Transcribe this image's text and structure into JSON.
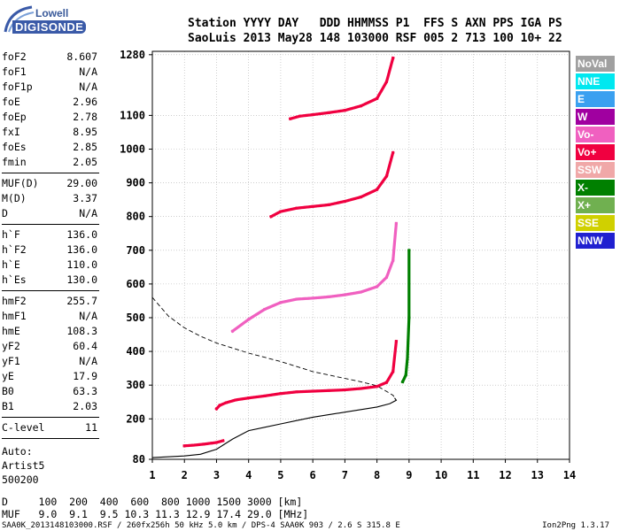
{
  "logo": {
    "line1": "Lowell",
    "line2": "DIGISONDE"
  },
  "header": {
    "line1": "Station YYYY DAY   DDD HHMMSS P1  FFS S AXN PPS IGA PS",
    "line2": "SaoLuis 2013 May28 148 103000 RSF 005 2 713 100 10+ 22"
  },
  "params": {
    "group1": [
      {
        "k": "foF2",
        "v": "8.607"
      },
      {
        "k": "foF1",
        "v": "N/A"
      },
      {
        "k": "foF1p",
        "v": "N/A"
      },
      {
        "k": "foE",
        "v": "2.96"
      },
      {
        "k": "foEp",
        "v": "2.78"
      },
      {
        "k": "fxI",
        "v": "8.95"
      },
      {
        "k": "foEs",
        "v": "2.85"
      },
      {
        "k": "fmin",
        "v": "2.05"
      }
    ],
    "group2": [
      {
        "k": "MUF(D)",
        "v": "29.00"
      },
      {
        "k": "M(D)",
        "v": "3.37"
      },
      {
        "k": "D",
        "v": "N/A"
      }
    ],
    "group3": [
      {
        "k": "h`F",
        "v": "136.0"
      },
      {
        "k": "h`F2",
        "v": "136.0"
      },
      {
        "k": "h`E",
        "v": "110.0"
      },
      {
        "k": "h`Es",
        "v": "130.0"
      }
    ],
    "group4": [
      {
        "k": "hmF2",
        "v": "255.7"
      },
      {
        "k": "hmF1",
        "v": "N/A"
      },
      {
        "k": "hmE",
        "v": "108.3"
      },
      {
        "k": "yF2",
        "v": "60.4"
      },
      {
        "k": "yF1",
        "v": "N/A"
      },
      {
        "k": "yE",
        "v": "17.9"
      },
      {
        "k": "B0",
        "v": "63.3"
      },
      {
        "k": "B1",
        "v": "2.03"
      }
    ],
    "group5": [
      {
        "k": "C-level",
        "v": "11"
      }
    ]
  },
  "extra": {
    "line1": "Auto:",
    "line2": "Artist5",
    "line3": "500200"
  },
  "legend": [
    {
      "label": "NoVal",
      "color": "#a0a0a0"
    },
    {
      "label": "NNE",
      "color": "#00e8f0"
    },
    {
      "label": "E",
      "color": "#3aa0f0"
    },
    {
      "label": "W",
      "color": "#a000a0"
    },
    {
      "label": "Vo-",
      "color": "#f060c0"
    },
    {
      "label": "Vo+",
      "color": "#f00040"
    },
    {
      "label": "SSW",
      "color": "#f0a8a8"
    },
    {
      "label": "X-",
      "color": "#008000"
    },
    {
      "label": "X+",
      "color": "#70b050"
    },
    {
      "label": "SSE",
      "color": "#d0d000"
    },
    {
      "label": "NNW",
      "color": "#2020d0"
    }
  ],
  "footer": {
    "line1": "D     100  200  400  600  800 1000 1500 3000 [km]",
    "line2": "MUF   9.0  9.1  9.5 10.3 11.3 12.9 17.4 29.0 [MHz]",
    "line3": "SAA0K_2013148103000.RSF / 260fx256h 50 kHz 5.0 km / DPS-4 SAA0K 903 / 2.6 S 315.8 E",
    "version": "Ion2Png 1.3.17"
  },
  "chart_data": {
    "type": "scatter",
    "xlim": [
      1,
      14
    ],
    "ylim": [
      80,
      1290
    ],
    "xticks": [
      1,
      2,
      3,
      4,
      5,
      6,
      7,
      8,
      9,
      10,
      11,
      12,
      13,
      14
    ],
    "yticks": [
      80,
      200,
      300,
      400,
      500,
      600,
      700,
      800,
      900,
      1000,
      1100,
      1280
    ],
    "grid": true,
    "traces": [
      {
        "name": "O-trace 1st hop",
        "color": "#f00040",
        "x": [
          3.0,
          3.1,
          3.3,
          3.6,
          4.0,
          4.5,
          5.0,
          5.5,
          6.0,
          6.5,
          7.0,
          7.5,
          8.0,
          8.3,
          8.5,
          8.6
        ],
        "y": [
          230,
          240,
          248,
          256,
          262,
          268,
          275,
          280,
          282,
          284,
          286,
          290,
          296,
          308,
          340,
          430
        ]
      },
      {
        "name": "X-trace 1st hop",
        "color": "#008000",
        "x": [
          8.8,
          8.9,
          8.95,
          9.0,
          9.0
        ],
        "y": [
          310,
          330,
          380,
          500,
          700
        ]
      },
      {
        "name": "O-trace 2nd hop",
        "color": "#f060c0",
        "x": [
          3.5,
          4.0,
          4.5,
          5.0,
          5.5,
          6.0,
          6.5,
          7.0,
          7.5,
          8.0,
          8.3,
          8.5,
          8.6
        ],
        "y": [
          460,
          495,
          525,
          545,
          555,
          558,
          562,
          568,
          576,
          592,
          620,
          670,
          780
        ]
      },
      {
        "name": "O-trace 3rd hop",
        "color": "#f00040",
        "x": [
          4.7,
          5.0,
          5.5,
          6.0,
          6.5,
          7.0,
          7.5,
          8.0,
          8.3,
          8.5
        ],
        "y": [
          800,
          815,
          825,
          830,
          835,
          845,
          858,
          880,
          920,
          990
        ]
      },
      {
        "name": "O-trace 4th hop",
        "color": "#f00040",
        "x": [
          5.3,
          5.6,
          6.0,
          6.5,
          7.0,
          7.5,
          8.0,
          8.3,
          8.5
        ],
        "y": [
          1090,
          1098,
          1102,
          1108,
          1115,
          1128,
          1150,
          1200,
          1270
        ]
      },
      {
        "name": "E/Es trace",
        "color": "#f00040",
        "x": [
          2.0,
          2.3,
          2.6,
          2.85,
          3.0,
          3.2
        ],
        "y": [
          120,
          122,
          125,
          128,
          130,
          135
        ]
      }
    ],
    "profile": {
      "x": [
        1.0,
        2.0,
        2.5,
        3.0,
        3.5,
        4.0,
        4.5,
        5.0,
        5.5,
        6.0,
        7.0,
        8.0,
        8.4,
        8.6,
        8.55
      ],
      "y": [
        85,
        90,
        95,
        110,
        140,
        165,
        175,
        185,
        195,
        205,
        220,
        235,
        245,
        255,
        262
      ]
    },
    "muf_curve": {
      "x": [
        1.0,
        1.5,
        2.0,
        2.5,
        3.0,
        3.5,
        4.0,
        5.0,
        6.0,
        7.0,
        7.5,
        8.0,
        8.5,
        8.6
      ],
      "y": [
        560,
        505,
        470,
        445,
        425,
        410,
        395,
        370,
        340,
        320,
        310,
        298,
        270,
        255
      ]
    }
  }
}
